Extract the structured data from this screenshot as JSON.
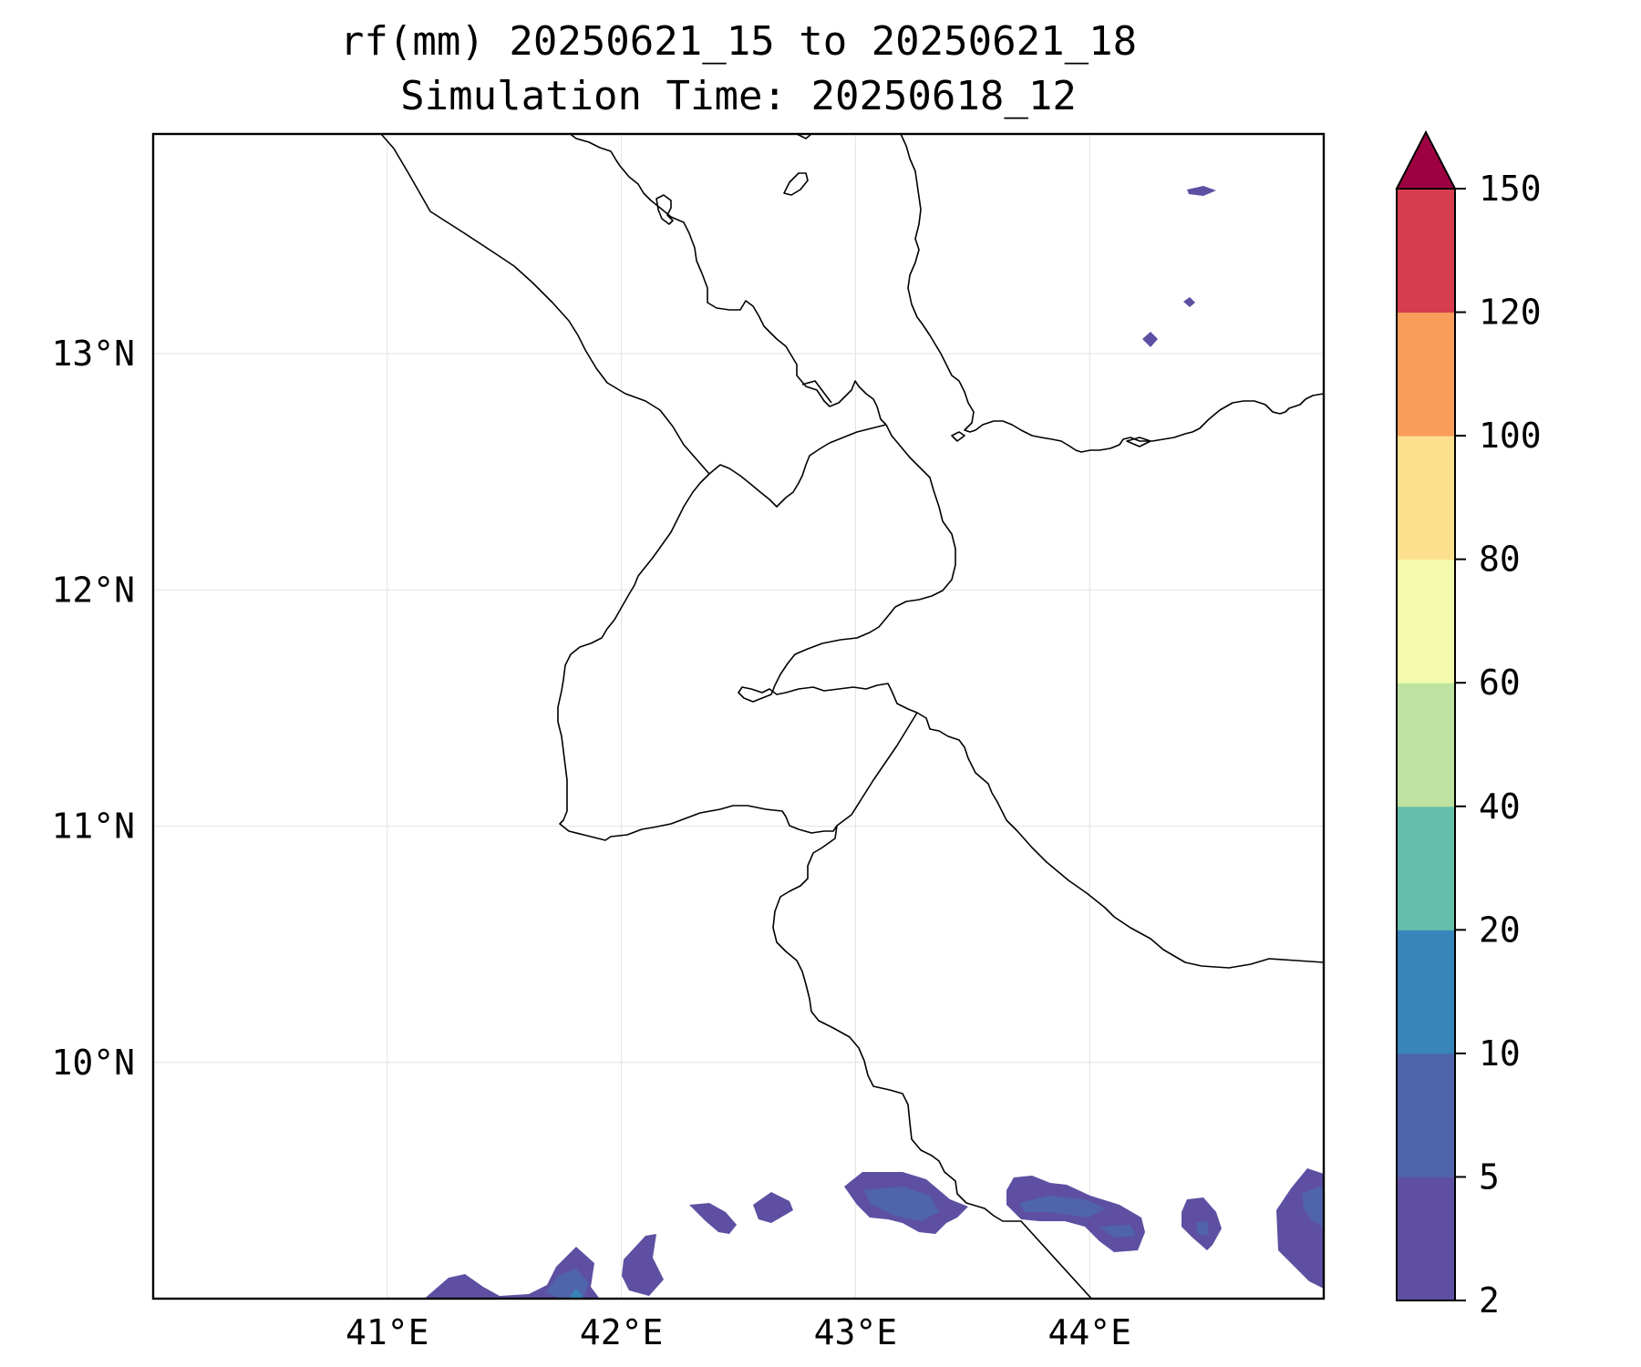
{
  "title_line1": "rf(mm) 20250621_15 to 20250621_18",
  "title_line2": "Simulation Time: 20250618_12",
  "map": {
    "lon_range": [
      40.0,
      45.0
    ],
    "lat_range": [
      9.0,
      13.93
    ],
    "gridlines": true,
    "lon_ticks": [
      {
        "value": 41,
        "label": "41°E"
      },
      {
        "value": 42,
        "label": "42°E"
      },
      {
        "value": 43,
        "label": "43°E"
      },
      {
        "value": 44,
        "label": "44°E"
      }
    ],
    "lat_ticks": [
      {
        "value": 13,
        "label": "13°N"
      },
      {
        "value": 12,
        "label": "12°N"
      },
      {
        "value": 11,
        "label": "11°N"
      },
      {
        "value": 10,
        "label": "10°N"
      }
    ],
    "coastline_color": "#000000"
  },
  "colorbar": {
    "extend": "max",
    "levels": [
      {
        "value": 2,
        "label": "2"
      },
      {
        "value": 5,
        "label": "5"
      },
      {
        "value": 10,
        "label": "10"
      },
      {
        "value": 20,
        "label": "20"
      },
      {
        "value": 40,
        "label": "40"
      },
      {
        "value": 60,
        "label": "60"
      },
      {
        "value": 80,
        "label": "80"
      },
      {
        "value": 100,
        "label": "100"
      },
      {
        "value": 120,
        "label": "120"
      },
      {
        "value": 150,
        "label": "150"
      }
    ],
    "colors": [
      "#5e4fa2",
      "#4f64ad",
      "#3785bb",
      "#63bfa9",
      "#bee3a0",
      "#f4fbae",
      "#fce08e",
      "#f99d5a",
      "#d63d4e",
      "#9e0142"
    ]
  }
}
